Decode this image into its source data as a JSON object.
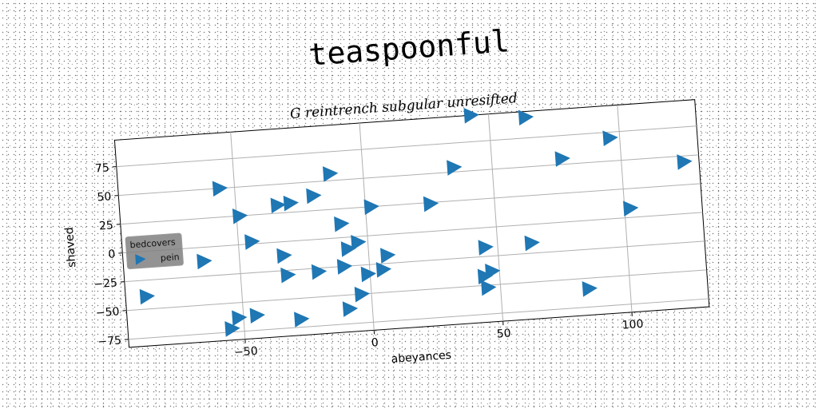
{
  "title": "teaspoonful",
  "chart_data": {
    "type": "scatter",
    "title": "G reintrench subgular unresifted",
    "xlabel": "abeyances",
    "ylabel": "shaved",
    "xlim": [
      -95,
      130
    ],
    "ylim": [
      -82,
      98
    ],
    "xticks": [
      -50,
      0,
      50,
      100
    ],
    "yticks": [
      -75,
      -50,
      -25,
      0,
      25,
      50,
      75
    ],
    "grid": true,
    "marker": "triangle-right",
    "legend": {
      "title": "bedcovers",
      "placement": "left",
      "entries": [
        "pein"
      ]
    },
    "series": [
      {
        "name": "pein",
        "color": "#1f77b4",
        "x": [
          43,
          64,
          96,
          124,
          77,
          35,
          -56,
          -13,
          25,
          2,
          -29,
          -34,
          -20,
          -49,
          -10,
          -45,
          102,
          -64,
          -33,
          -8,
          -4,
          -32,
          -20,
          -10,
          5,
          -1,
          7,
          45,
          63,
          47,
          44,
          -87,
          -45,
          -52,
          -55,
          -28,
          -9,
          -4,
          84,
          45
        ],
        "y": [
          98,
          93,
          70,
          45,
          55,
          54,
          50,
          56,
          24,
          25,
          33,
          32,
          38,
          25,
          12,
          2,
          8,
          -12,
          -12,
          -10,
          -5,
          -29,
          -28,
          -25,
          -30,
          -33,
          -18,
          -17,
          -16,
          -38,
          -42,
          -39,
          -62,
          -63,
          -72,
          -68,
          -62,
          -50,
          -59,
          -52
        ]
      }
    ]
  }
}
